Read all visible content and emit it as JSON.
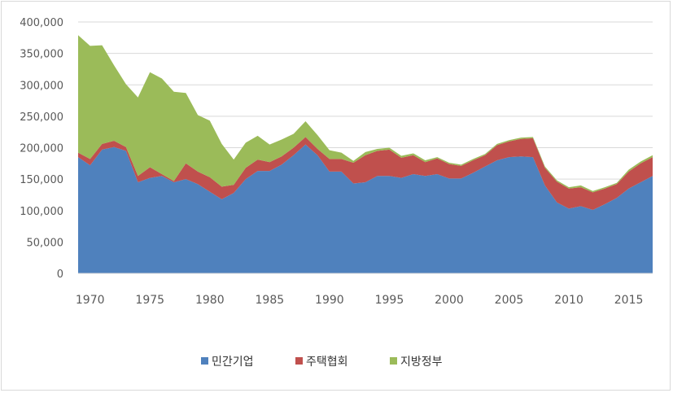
{
  "chart_data": {
    "type": "area",
    "stacked": true,
    "x": [
      1969,
      1970,
      1971,
      1972,
      1973,
      1974,
      1975,
      1976,
      1977,
      1978,
      1979,
      1980,
      1981,
      1982,
      1983,
      1984,
      1985,
      1986,
      1987,
      1988,
      1989,
      1990,
      1991,
      1992,
      1993,
      1994,
      1995,
      1996,
      1997,
      1998,
      1999,
      2000,
      2001,
      2002,
      2003,
      2004,
      2005,
      2006,
      2007,
      2008,
      2009,
      2010,
      2011,
      2012,
      2013,
      2014,
      2015,
      2016,
      2017
    ],
    "series": [
      {
        "name": "민간기업",
        "color": "#4F81BD",
        "values": [
          185000,
          172000,
          197000,
          201000,
          195000,
          145000,
          152000,
          155000,
          145000,
          150000,
          142000,
          130000,
          118000,
          128000,
          150000,
          163000,
          163000,
          173000,
          188000,
          205000,
          188000,
          162000,
          162000,
          143000,
          145000,
          155000,
          155000,
          152000,
          158000,
          155000,
          158000,
          151000,
          151000,
          160000,
          170000,
          180000,
          185000,
          186000,
          185000,
          140000,
          113000,
          103000,
          107000,
          101000,
          110000,
          120000,
          135000,
          145000,
          155000
        ]
      },
      {
        "name": "주택협회",
        "color": "#C0504D",
        "values": [
          7000,
          10000,
          9000,
          10000,
          6000,
          10000,
          17000,
          3000,
          2000,
          25000,
          20000,
          23000,
          20000,
          13000,
          18000,
          18000,
          14000,
          13000,
          12000,
          12000,
          10000,
          20000,
          20000,
          33000,
          43000,
          40000,
          42000,
          32000,
          30000,
          22000,
          25000,
          23000,
          20000,
          20000,
          18000,
          24000,
          25000,
          28000,
          30000,
          28000,
          33000,
          32000,
          30000,
          28000,
          25000,
          22000,
          27000,
          30000,
          30000
        ]
      },
      {
        "name": "지방정부",
        "color": "#9BBB59",
        "values": [
          187000,
          180000,
          157000,
          120000,
          100000,
          125000,
          151000,
          152000,
          142000,
          112000,
          90000,
          90000,
          68000,
          40000,
          40000,
          38000,
          28000,
          27000,
          22000,
          25000,
          22000,
          14000,
          10000,
          3000,
          5000,
          3000,
          3000,
          3000,
          3000,
          3000,
          2000,
          2000,
          2000,
          2000,
          2000,
          2000,
          2000,
          2000,
          2000,
          2000,
          2000,
          2000,
          3000,
          2000,
          2000,
          2000,
          3000,
          3000,
          3000
        ]
      }
    ],
    "ylim": [
      0,
      400000
    ],
    "yticks": [
      0,
      50000,
      100000,
      150000,
      200000,
      250000,
      300000,
      350000,
      400000
    ],
    "ytick_labels": [
      "0",
      "50,000",
      "100,000",
      "150,000",
      "200,000",
      "250,000",
      "300,000",
      "350,000",
      "400,000"
    ],
    "xticks": [
      1970,
      1975,
      1980,
      1985,
      1990,
      1995,
      2000,
      2005,
      2010,
      2015
    ],
    "xtick_labels": [
      "1970",
      "1975",
      "1980",
      "1985",
      "1990",
      "1995",
      "2000",
      "2005",
      "2010",
      "2015"
    ],
    "grid": true,
    "legend": "bottom"
  }
}
